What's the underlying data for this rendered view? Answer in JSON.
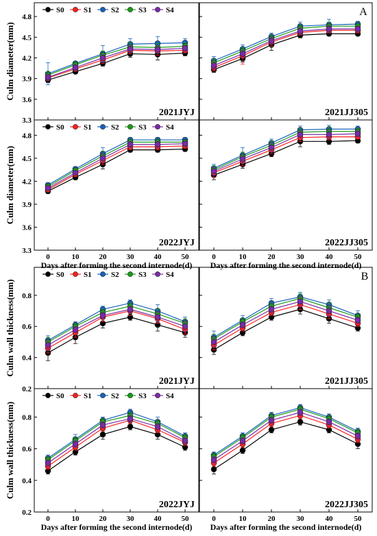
{
  "figure": {
    "labels": [
      "A",
      "B"
    ],
    "xlabel": "Days after forming the second internode(d)",
    "ylabel_diameter": "Culm diameter(mm)",
    "ylabel_wall": "Culm wall thickness(mm)",
    "legend": [
      "S0",
      "S1",
      "S2",
      "S3",
      "S4"
    ],
    "colors": {
      "S0": "#000000",
      "S1": "#ff2020",
      "S2": "#1560bd",
      "S3": "#1a9a1a",
      "S4": "#7a2aa8"
    }
  },
  "chart_data": [
    {
      "type": "line",
      "title": "2021JYJ",
      "ylabel": "Culm diameter(mm)",
      "xlabel": "",
      "x": [
        0,
        10,
        20,
        30,
        40,
        50
      ],
      "xlim": [
        -5,
        55
      ],
      "ylim": [
        3.3,
        5.0
      ],
      "yticks": [
        3.3,
        3.6,
        3.9,
        4.2,
        4.5,
        4.8
      ],
      "series": [
        {
          "name": "S0",
          "values": [
            3.88,
            4.0,
            4.12,
            4.26,
            4.25,
            4.27
          ],
          "errors": [
            0.04,
            0.03,
            0.04,
            0.05,
            0.08,
            0.04
          ]
        },
        {
          "name": "S1",
          "values": [
            3.91,
            4.04,
            4.17,
            4.31,
            4.3,
            4.31
          ],
          "errors": [
            0.04,
            0.03,
            0.05,
            0.05,
            0.06,
            0.04
          ]
        },
        {
          "name": "S2",
          "values": [
            3.97,
            4.12,
            4.26,
            4.4,
            4.41,
            4.42
          ],
          "errors": [
            0.16,
            0.03,
            0.12,
            0.08,
            0.1,
            0.06
          ]
        },
        {
          "name": "S3",
          "values": [
            3.95,
            4.1,
            4.24,
            4.36,
            4.35,
            4.37
          ],
          "errors": [
            0.05,
            0.04,
            0.06,
            0.06,
            0.06,
            0.05
          ]
        },
        {
          "name": "S4",
          "values": [
            3.92,
            4.06,
            4.2,
            4.33,
            4.32,
            4.34
          ],
          "errors": [
            0.04,
            0.04,
            0.05,
            0.05,
            0.05,
            0.04
          ]
        }
      ]
    },
    {
      "type": "line",
      "title": "2021JJ305",
      "ylabel": "",
      "xlabel": "",
      "x": [
        0,
        10,
        20,
        30,
        40,
        50
      ],
      "xlim": [
        -5,
        55
      ],
      "ylim": [
        3.3,
        5.0
      ],
      "yticks": [
        3.3,
        3.6,
        3.9,
        4.2,
        4.5,
        4.8
      ],
      "series": [
        {
          "name": "S0",
          "values": [
            4.03,
            4.19,
            4.39,
            4.53,
            4.55,
            4.55
          ],
          "errors": [
            0.04,
            0.05,
            0.08,
            0.04,
            0.03,
            0.03
          ]
        },
        {
          "name": "S1",
          "values": [
            4.06,
            4.23,
            4.43,
            4.57,
            4.6,
            4.6
          ],
          "errors": [
            0.05,
            0.12,
            0.06,
            0.04,
            0.04,
            0.04
          ]
        },
        {
          "name": "S2",
          "values": [
            4.16,
            4.33,
            4.51,
            4.66,
            4.68,
            4.69
          ],
          "errors": [
            0.06,
            0.06,
            0.05,
            0.06,
            0.08,
            0.04
          ]
        },
        {
          "name": "S3",
          "values": [
            4.13,
            4.3,
            4.48,
            4.63,
            4.66,
            4.66
          ],
          "errors": [
            0.05,
            0.05,
            0.05,
            0.05,
            0.06,
            0.04
          ]
        },
        {
          "name": "S4",
          "values": [
            4.09,
            4.26,
            4.45,
            4.59,
            4.62,
            4.62
          ],
          "errors": [
            0.05,
            0.05,
            0.05,
            0.05,
            0.05,
            0.04
          ]
        }
      ]
    },
    {
      "type": "line",
      "title": "2022JYJ",
      "ylabel": "Culm diameter(mm)",
      "xlabel": "Days after forming the second internode(d)",
      "x": [
        0,
        10,
        20,
        30,
        40,
        50
      ],
      "xlim": [
        -5,
        55
      ],
      "ylim": [
        3.3,
        5.0
      ],
      "yticks": [
        3.3,
        3.6,
        3.9,
        4.2,
        4.5,
        4.8
      ],
      "series": [
        {
          "name": "S0",
          "values": [
            4.07,
            4.25,
            4.42,
            4.61,
            4.61,
            4.62
          ],
          "errors": [
            0.03,
            0.03,
            0.06,
            0.03,
            0.03,
            0.03
          ]
        },
        {
          "name": "S1",
          "values": [
            4.09,
            4.29,
            4.47,
            4.65,
            4.65,
            4.66
          ],
          "errors": [
            0.03,
            0.03,
            0.05,
            0.04,
            0.04,
            0.03
          ]
        },
        {
          "name": "S2",
          "values": [
            4.15,
            4.36,
            4.56,
            4.74,
            4.74,
            4.74
          ],
          "errors": [
            0.03,
            0.03,
            0.08,
            0.03,
            0.03,
            0.03
          ]
        },
        {
          "name": "S3",
          "values": [
            4.13,
            4.34,
            4.53,
            4.71,
            4.71,
            4.71
          ],
          "errors": [
            0.03,
            0.03,
            0.06,
            0.04,
            0.04,
            0.03
          ]
        },
        {
          "name": "S4",
          "values": [
            4.11,
            4.31,
            4.5,
            4.68,
            4.68,
            4.69
          ],
          "errors": [
            0.03,
            0.03,
            0.05,
            0.04,
            0.04,
            0.03
          ]
        }
      ]
    },
    {
      "type": "line",
      "title": "2022JJ305",
      "ylabel": "",
      "xlabel": "Days after forming the second internode(d)",
      "x": [
        0,
        10,
        20,
        30,
        40,
        50
      ],
      "xlim": [
        -5,
        55
      ],
      "ylim": [
        3.3,
        5.0
      ],
      "yticks": [
        3.3,
        3.6,
        3.9,
        4.2,
        4.5,
        4.8
      ],
      "series": [
        {
          "name": "S0",
          "values": [
            4.28,
            4.42,
            4.56,
            4.72,
            4.72,
            4.73
          ],
          "errors": [
            0.06,
            0.05,
            0.04,
            0.07,
            0.04,
            0.03
          ]
        },
        {
          "name": "S1",
          "values": [
            4.31,
            4.46,
            4.61,
            4.77,
            4.78,
            4.78
          ],
          "errors": [
            0.06,
            0.06,
            0.05,
            0.05,
            0.04,
            0.03
          ]
        },
        {
          "name": "S2",
          "values": [
            4.37,
            4.54,
            4.7,
            4.87,
            4.88,
            4.88
          ],
          "errors": [
            0.05,
            0.1,
            0.05,
            0.05,
            0.05,
            0.04
          ]
        },
        {
          "name": "S3",
          "values": [
            4.35,
            4.52,
            4.67,
            4.84,
            4.85,
            4.85
          ],
          "errors": [
            0.05,
            0.06,
            0.05,
            0.05,
            0.05,
            0.04
          ]
        },
        {
          "name": "S4",
          "values": [
            4.33,
            4.49,
            4.64,
            4.81,
            4.81,
            4.82
          ],
          "errors": [
            0.05,
            0.05,
            0.05,
            0.05,
            0.05,
            0.04
          ]
        }
      ]
    },
    {
      "type": "line",
      "title": "2021JYJ",
      "ylabel": "Culm wall thickness(mm)",
      "xlabel": "",
      "x": [
        0,
        10,
        20,
        30,
        40,
        50
      ],
      "xlim": [
        -5,
        55
      ],
      "ylim": [
        0.2,
        0.98
      ],
      "yticks": [
        0.2,
        0.4,
        0.6,
        0.8
      ],
      "series": [
        {
          "name": "S0",
          "values": [
            0.43,
            0.53,
            0.62,
            0.66,
            0.61,
            0.56
          ],
          "errors": [
            0.05,
            0.04,
            0.03,
            0.02,
            0.04,
            0.03
          ]
        },
        {
          "name": "S1",
          "values": [
            0.46,
            0.56,
            0.66,
            0.7,
            0.65,
            0.58
          ],
          "errors": [
            0.03,
            0.03,
            0.03,
            0.03,
            0.03,
            0.03
          ]
        },
        {
          "name": "S2",
          "values": [
            0.51,
            0.61,
            0.71,
            0.75,
            0.7,
            0.63
          ],
          "errors": [
            0.03,
            0.02,
            0.02,
            0.02,
            0.04,
            0.03
          ]
        },
        {
          "name": "S3",
          "values": [
            0.5,
            0.6,
            0.69,
            0.73,
            0.68,
            0.62
          ],
          "errors": [
            0.03,
            0.02,
            0.02,
            0.02,
            0.03,
            0.03
          ]
        },
        {
          "name": "S4",
          "values": [
            0.48,
            0.58,
            0.67,
            0.71,
            0.66,
            0.6
          ],
          "errors": [
            0.03,
            0.02,
            0.02,
            0.02,
            0.03,
            0.03
          ]
        }
      ]
    },
    {
      "type": "line",
      "title": "2021JJ305",
      "ylabel": "",
      "xlabel": "",
      "x": [
        0,
        10,
        20,
        30,
        40,
        50
      ],
      "xlim": [
        -5,
        55
      ],
      "ylim": [
        0.2,
        0.98
      ],
      "yticks": [
        0.2,
        0.4,
        0.6,
        0.8
      ],
      "series": [
        {
          "name": "S0",
          "values": [
            0.45,
            0.56,
            0.66,
            0.71,
            0.65,
            0.59
          ],
          "errors": [
            0.03,
            0.02,
            0.02,
            0.03,
            0.03,
            0.02
          ]
        },
        {
          "name": "S1",
          "values": [
            0.48,
            0.59,
            0.69,
            0.74,
            0.68,
            0.62
          ],
          "errors": [
            0.03,
            0.02,
            0.02,
            0.03,
            0.03,
            0.02
          ]
        },
        {
          "name": "S2",
          "values": [
            0.53,
            0.64,
            0.75,
            0.79,
            0.74,
            0.67
          ],
          "errors": [
            0.04,
            0.03,
            0.03,
            0.03,
            0.03,
            0.03
          ]
        },
        {
          "name": "S3",
          "values": [
            0.52,
            0.63,
            0.73,
            0.78,
            0.72,
            0.66
          ],
          "errors": [
            0.03,
            0.02,
            0.02,
            0.03,
            0.03,
            0.02
          ]
        },
        {
          "name": "S4",
          "values": [
            0.5,
            0.61,
            0.71,
            0.76,
            0.7,
            0.64
          ],
          "errors": [
            0.03,
            0.02,
            0.02,
            0.03,
            0.03,
            0.02
          ]
        }
      ]
    },
    {
      "type": "line",
      "title": "2022JYJ",
      "ylabel": "Culm wall thickness(mm)",
      "xlabel": "Days after forming the second internode(d)",
      "x": [
        0,
        10,
        20,
        30,
        40,
        50
      ],
      "xlim": [
        -5,
        55
      ],
      "ylim": [
        0.2,
        0.98
      ],
      "yticks": [
        0.2,
        0.4,
        0.6,
        0.8
      ],
      "series": [
        {
          "name": "S0",
          "values": [
            0.46,
            0.58,
            0.69,
            0.74,
            0.69,
            0.61
          ],
          "errors": [
            0.02,
            0.02,
            0.03,
            0.02,
            0.03,
            0.02
          ]
        },
        {
          "name": "S1",
          "values": [
            0.49,
            0.61,
            0.73,
            0.78,
            0.72,
            0.64
          ],
          "errors": [
            0.02,
            0.02,
            0.02,
            0.02,
            0.02,
            0.02
          ]
        },
        {
          "name": "S2",
          "values": [
            0.54,
            0.66,
            0.78,
            0.83,
            0.77,
            0.68
          ],
          "errors": [
            0.02,
            0.03,
            0.02,
            0.02,
            0.03,
            0.02
          ]
        },
        {
          "name": "S3",
          "values": [
            0.53,
            0.65,
            0.77,
            0.81,
            0.76,
            0.67
          ],
          "errors": [
            0.02,
            0.02,
            0.02,
            0.02,
            0.02,
            0.02
          ]
        },
        {
          "name": "S4",
          "values": [
            0.51,
            0.63,
            0.75,
            0.79,
            0.74,
            0.65
          ],
          "errors": [
            0.02,
            0.02,
            0.02,
            0.02,
            0.02,
            0.02
          ]
        }
      ]
    },
    {
      "type": "line",
      "title": "2022JJ305",
      "ylabel": "",
      "xlabel": "Days after forming the second internode(d)",
      "x": [
        0,
        10,
        20,
        30,
        40,
        50
      ],
      "xlim": [
        -5,
        55
      ],
      "ylim": [
        0.2,
        0.98
      ],
      "yticks": [
        0.2,
        0.4,
        0.6,
        0.8
      ],
      "series": [
        {
          "name": "S0",
          "values": [
            0.47,
            0.59,
            0.72,
            0.77,
            0.72,
            0.63
          ],
          "errors": [
            0.03,
            0.02,
            0.02,
            0.02,
            0.02,
            0.03
          ]
        },
        {
          "name": "S1",
          "values": [
            0.51,
            0.63,
            0.76,
            0.81,
            0.75,
            0.66
          ],
          "errors": [
            0.02,
            0.02,
            0.02,
            0.02,
            0.02,
            0.02
          ]
        },
        {
          "name": "S2",
          "values": [
            0.56,
            0.68,
            0.81,
            0.86,
            0.8,
            0.71
          ],
          "errors": [
            0.02,
            0.02,
            0.02,
            0.02,
            0.02,
            0.02
          ]
        },
        {
          "name": "S3",
          "values": [
            0.55,
            0.67,
            0.8,
            0.85,
            0.79,
            0.7
          ],
          "errors": [
            0.02,
            0.02,
            0.02,
            0.02,
            0.02,
            0.02
          ]
        },
        {
          "name": "S4",
          "values": [
            0.53,
            0.65,
            0.78,
            0.83,
            0.77,
            0.68
          ],
          "errors": [
            0.02,
            0.02,
            0.02,
            0.02,
            0.02,
            0.02
          ]
        }
      ]
    }
  ]
}
